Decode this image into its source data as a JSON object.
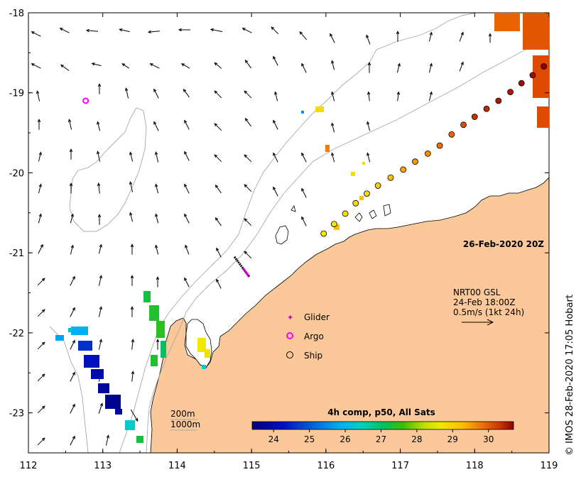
{
  "map": {
    "timestamp": "26-Feb-2020 20Z",
    "x_ticks": [
      "112",
      "113",
      "114",
      "115",
      "116",
      "117",
      "118",
      "119"
    ],
    "y_ticks": [
      "-18",
      "-19",
      "-20",
      "-21",
      "-22",
      "-23"
    ],
    "lon_range": [
      112,
      119
    ],
    "lat_range": [
      -23.5,
      -18
    ],
    "colors": {
      "land": "#fbc899",
      "ocean": "#ffffff",
      "coast": "#000000",
      "isobath": "#a8a8a8"
    }
  },
  "velocity_key": {
    "source": "NRT00 GSL",
    "time": "24-Feb 18:00Z",
    "scale": "0.5m/s (1kt 24h)"
  },
  "legend": {
    "glider_label": "Glider",
    "argo_label": "Argo",
    "ship_label": "Ship"
  },
  "isobaths": {
    "shallow_label": "200m",
    "deep_label": "1000m"
  },
  "colorbar": {
    "title": "4h comp, p50, All Sats",
    "ticks": [
      "24",
      "25",
      "26",
      "27",
      "28",
      "29",
      "30"
    ],
    "range": [
      23.4,
      30.7
    ]
  },
  "credit": "© IMOS 28-Feb-2020 17:05 Hobart",
  "observations": {
    "argo_float": {
      "lon": 112.77,
      "lat": -19.1
    },
    "glider_track": {
      "start": [
        114.77,
        -21.05
      ],
      "end": [
        114.97,
        -21.3
      ]
    },
    "ship_track": [
      {
        "lon": 115.97,
        "lat": -20.76,
        "sst": 28.6
      },
      {
        "lon": 116.11,
        "lat": -20.64,
        "sst": 28.6
      },
      {
        "lon": 116.26,
        "lat": -20.51,
        "sst": 28.7
      },
      {
        "lon": 116.4,
        "lat": -20.38,
        "sst": 28.8
      },
      {
        "lon": 116.55,
        "lat": -20.26,
        "sst": 28.8
      },
      {
        "lon": 116.7,
        "lat": -20.16,
        "sst": 29.0
      },
      {
        "lon": 116.87,
        "lat": -20.06,
        "sst": 29.2
      },
      {
        "lon": 117.04,
        "lat": -19.96,
        "sst": 29.4
      },
      {
        "lon": 117.2,
        "lat": -19.86,
        "sst": 29.5
      },
      {
        "lon": 117.37,
        "lat": -19.76,
        "sst": 29.6
      },
      {
        "lon": 117.53,
        "lat": -19.66,
        "sst": 29.8
      },
      {
        "lon": 117.69,
        "lat": -19.52,
        "sst": 29.9
      },
      {
        "lon": 117.85,
        "lat": -19.4,
        "sst": 30.1
      },
      {
        "lon": 118.0,
        "lat": -19.3,
        "sst": 30.3
      },
      {
        "lon": 118.16,
        "lat": -19.2,
        "sst": 30.4
      },
      {
        "lon": 118.32,
        "lat": -19.1,
        "sst": 30.5
      },
      {
        "lon": 118.48,
        "lat": -18.99,
        "sst": 30.5
      },
      {
        "lon": 118.63,
        "lat": -18.88,
        "sst": 30.6
      },
      {
        "lon": 118.78,
        "lat": -18.78,
        "sst": 30.6
      },
      {
        "lon": 118.93,
        "lat": -18.67,
        "sst": 30.7
      }
    ]
  }
}
